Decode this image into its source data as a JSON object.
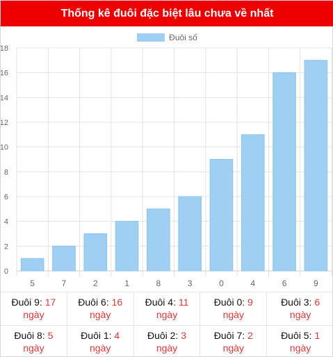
{
  "header": {
    "title": "Thống kê đuôi đặc biệt lâu chưa về nhất"
  },
  "colors": {
    "header_bg": "#ee0000",
    "bar_fill": "#9fcff2",
    "bar_stroke": "#8cc4ee",
    "red_text": "#e23636"
  },
  "chart_data": {
    "type": "bar",
    "categories": [
      "5",
      "7",
      "2",
      "1",
      "8",
      "3",
      "0",
      "4",
      "6",
      "9"
    ],
    "series": [
      {
        "name": "Đuôi số",
        "values": [
          1,
          2,
          3,
          4,
          5,
          6,
          9,
          11,
          16,
          17
        ]
      }
    ],
    "yticks": [
      "0",
      "2",
      "4",
      "6",
      "8",
      "10",
      "12",
      "14",
      "16",
      "18"
    ],
    "ylim": [
      0,
      18
    ],
    "grid": true,
    "legend": "top-center"
  },
  "stats": [
    {
      "label": "Đuôi 9:",
      "count": "17",
      "unit": "ngày"
    },
    {
      "label": "Đuôi 6:",
      "count": "16",
      "unit": "ngày"
    },
    {
      "label": "Đuôi 4:",
      "count": "11",
      "unit": "ngày"
    },
    {
      "label": "Đuôi 0:",
      "count": "9",
      "unit": "ngày"
    },
    {
      "label": "Đuôi 3:",
      "count": "6",
      "unit": "ngày"
    },
    {
      "label": "Đuôi 8:",
      "count": "5",
      "unit": "ngày"
    },
    {
      "label": "Đuôi 1:",
      "count": "4",
      "unit": "ngày"
    },
    {
      "label": "Đuôi 2:",
      "count": "3",
      "unit": "ngày"
    },
    {
      "label": "Đuôi 7:",
      "count": "2",
      "unit": "ngày"
    },
    {
      "label": "Đuôi 5:",
      "count": "1",
      "unit": "ngày"
    }
  ]
}
